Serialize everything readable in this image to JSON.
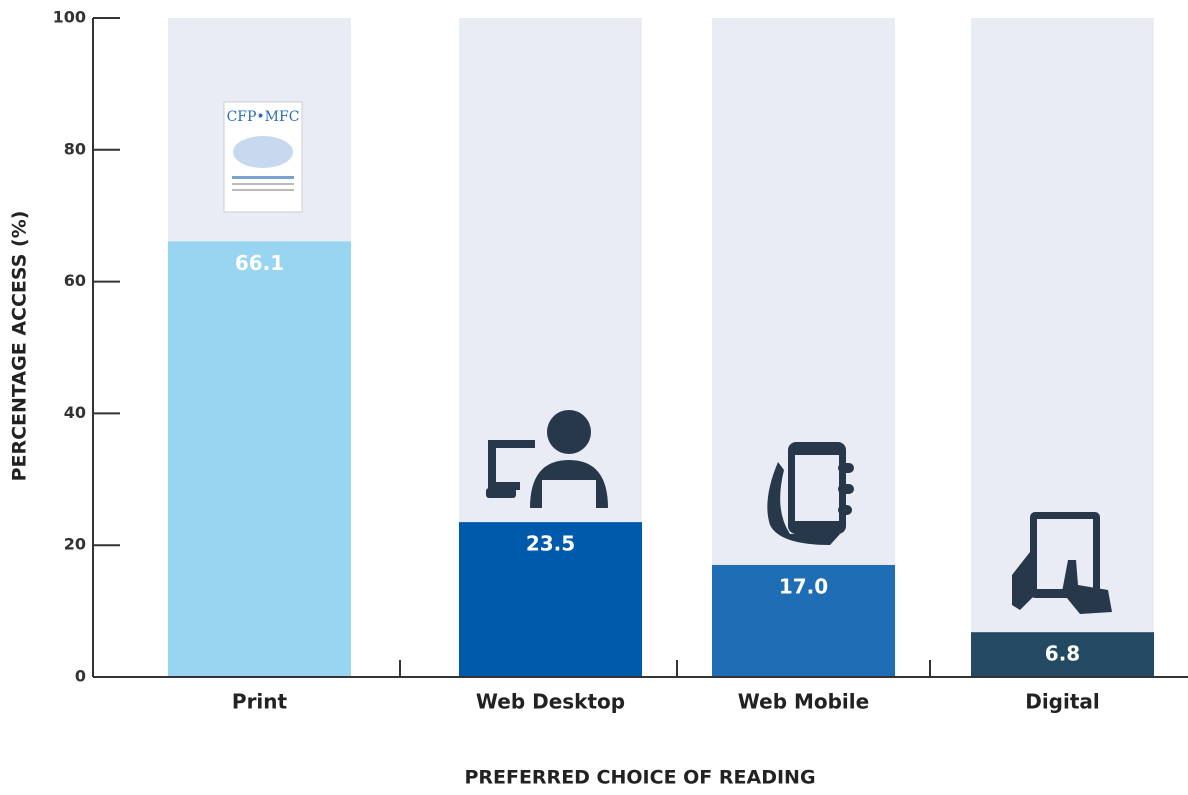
{
  "chart_data": {
    "type": "bar",
    "x_label": "PREFERRED CHOICE OF READING",
    "y_label": "PERCENTAGE ACCESS (%)",
    "categories": [
      "Print",
      "Web Desktop",
      "Web Mobile",
      "Digital"
    ],
    "values": [
      66.1,
      23.5,
      17,
      6.8
    ],
    "value_labels": [
      "66.1",
      "23.5",
      "17.0",
      "6.8"
    ],
    "colors": [
      "#97d5f1",
      "#005aab",
      "#1f6db4",
      "#244a63"
    ],
    "background_color": "#e9ebf5",
    "ylim": [
      0,
      100
    ],
    "yticks": [
      0,
      20,
      40,
      60,
      80,
      100
    ]
  }
}
